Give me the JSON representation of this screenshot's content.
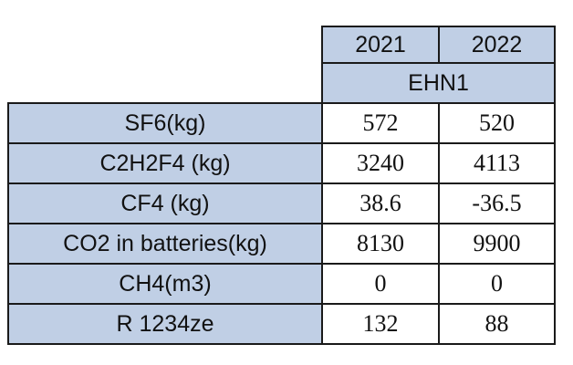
{
  "table": {
    "years": [
      "2021",
      "2022"
    ],
    "group": "EHN1",
    "rows": [
      {
        "label": "SF6(kg)",
        "values": [
          "572",
          "520"
        ]
      },
      {
        "label": "C2H2F4 (kg)",
        "values": [
          "3240",
          "4113"
        ]
      },
      {
        "label": "CF4 (kg)",
        "values": [
          "38.6",
          "-36.5"
        ]
      },
      {
        "label": "CO2 in batteries(kg)",
        "values": [
          "8130",
          "9900"
        ]
      },
      {
        "label": "CH4(m3)",
        "values": [
          "0",
          "0"
        ]
      },
      {
        "label": "R 1234ze",
        "values": [
          "132",
          "88"
        ]
      }
    ]
  },
  "colors": {
    "header_fill": "#c0cfe5",
    "border": "#1a1a1a"
  }
}
